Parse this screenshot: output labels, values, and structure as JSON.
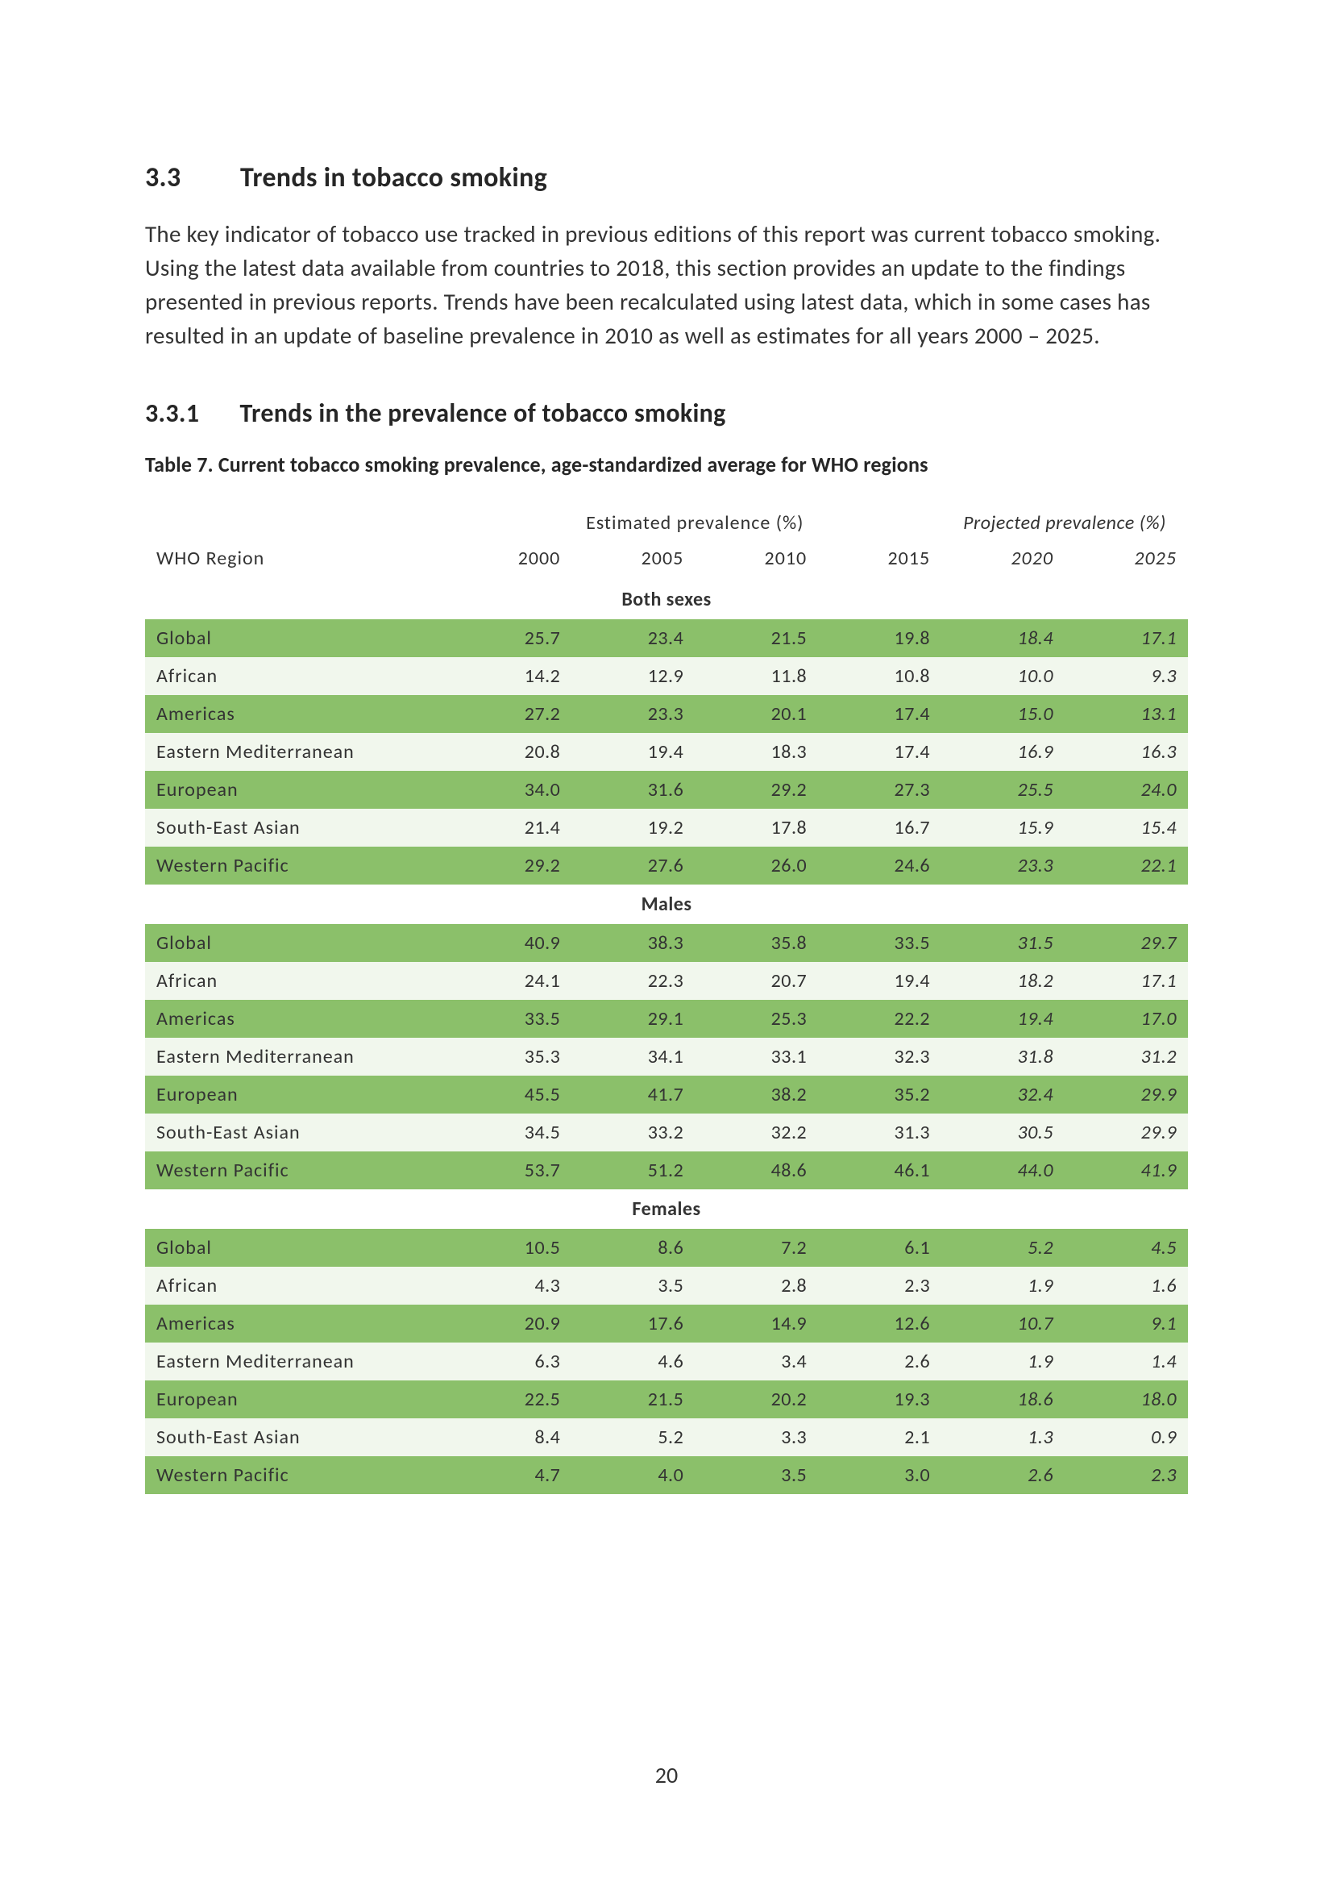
{
  "section": {
    "number": "3.3",
    "title": "Trends in tobacco smoking",
    "body": "The key indicator of tobacco use tracked in previous editions of this report was current tobacco smoking. Using the latest data available from countries to 2018, this section provides an update to the findings presented in previous reports. Trends have been recalculated using latest data, which in some cases has resulted in an update of baseline prevalence in 2010 as well as estimates for all years 2000 – 2025."
  },
  "subsection": {
    "number": "3.3.1",
    "title": "Trends in the prevalence of tobacco smoking"
  },
  "table": {
    "caption": "Table 7. Current tobacco smoking prevalence, age-standardized average for WHO regions",
    "region_header": "WHO Region",
    "group_headers": {
      "estimated": "Estimated prevalence (%)",
      "projected": "Projected prevalence (%)"
    },
    "years_estimated": [
      "2000",
      "2005",
      "2010",
      "2015"
    ],
    "years_projected": [
      "2020",
      "2025"
    ],
    "colors": {
      "row_dark": "#8bc06a",
      "row_light": "#f1f7ed",
      "text": "#333333",
      "background": "#ffffff"
    },
    "sections": [
      {
        "label": "Both sexes",
        "rows": [
          {
            "region": "Global",
            "est": [
              "25.7",
              "23.4",
              "21.5",
              "19.8"
            ],
            "proj": [
              "18.4",
              "17.1"
            ],
            "shade": "dark"
          },
          {
            "region": "African",
            "est": [
              "14.2",
              "12.9",
              "11.8",
              "10.8"
            ],
            "proj": [
              "10.0",
              "9.3"
            ],
            "shade": "light"
          },
          {
            "region": "Americas",
            "est": [
              "27.2",
              "23.3",
              "20.1",
              "17.4"
            ],
            "proj": [
              "15.0",
              "13.1"
            ],
            "shade": "dark"
          },
          {
            "region": "Eastern Mediterranean",
            "est": [
              "20.8",
              "19.4",
              "18.3",
              "17.4"
            ],
            "proj": [
              "16.9",
              "16.3"
            ],
            "shade": "light"
          },
          {
            "region": "European",
            "est": [
              "34.0",
              "31.6",
              "29.2",
              "27.3"
            ],
            "proj": [
              "25.5",
              "24.0"
            ],
            "shade": "dark"
          },
          {
            "region": "South-East Asian",
            "est": [
              "21.4",
              "19.2",
              "17.8",
              "16.7"
            ],
            "proj": [
              "15.9",
              "15.4"
            ],
            "shade": "light"
          },
          {
            "region": "Western Pacific",
            "est": [
              "29.2",
              "27.6",
              "26.0",
              "24.6"
            ],
            "proj": [
              "23.3",
              "22.1"
            ],
            "shade": "dark"
          }
        ]
      },
      {
        "label": "Males",
        "rows": [
          {
            "region": "Global",
            "est": [
              "40.9",
              "38.3",
              "35.8",
              "33.5"
            ],
            "proj": [
              "31.5",
              "29.7"
            ],
            "shade": "dark"
          },
          {
            "region": "African",
            "est": [
              "24.1",
              "22.3",
              "20.7",
              "19.4"
            ],
            "proj": [
              "18.2",
              "17.1"
            ],
            "shade": "light"
          },
          {
            "region": "Americas",
            "est": [
              "33.5",
              "29.1",
              "25.3",
              "22.2"
            ],
            "proj": [
              "19.4",
              "17.0"
            ],
            "shade": "dark"
          },
          {
            "region": "Eastern Mediterranean",
            "est": [
              "35.3",
              "34.1",
              "33.1",
              "32.3"
            ],
            "proj": [
              "31.8",
              "31.2"
            ],
            "shade": "light"
          },
          {
            "region": "European",
            "est": [
              "45.5",
              "41.7",
              "38.2",
              "35.2"
            ],
            "proj": [
              "32.4",
              "29.9"
            ],
            "shade": "dark"
          },
          {
            "region": "South-East Asian",
            "est": [
              "34.5",
              "33.2",
              "32.2",
              "31.3"
            ],
            "proj": [
              "30.5",
              "29.9"
            ],
            "shade": "light"
          },
          {
            "region": "Western Pacific",
            "est": [
              "53.7",
              "51.2",
              "48.6",
              "46.1"
            ],
            "proj": [
              "44.0",
              "41.9"
            ],
            "shade": "dark"
          }
        ]
      },
      {
        "label": "Females",
        "rows": [
          {
            "region": "Global",
            "est": [
              "10.5",
              "8.6",
              "7.2",
              "6.1"
            ],
            "proj": [
              "5.2",
              "4.5"
            ],
            "shade": "dark"
          },
          {
            "region": "African",
            "est": [
              "4.3",
              "3.5",
              "2.8",
              "2.3"
            ],
            "proj": [
              "1.9",
              "1.6"
            ],
            "shade": "light"
          },
          {
            "region": "Americas",
            "est": [
              "20.9",
              "17.6",
              "14.9",
              "12.6"
            ],
            "proj": [
              "10.7",
              "9.1"
            ],
            "shade": "dark"
          },
          {
            "region": "Eastern Mediterranean",
            "est": [
              "6.3",
              "4.6",
              "3.4",
              "2.6"
            ],
            "proj": [
              "1.9",
              "1.4"
            ],
            "shade": "light"
          },
          {
            "region": "European",
            "est": [
              "22.5",
              "21.5",
              "20.2",
              "19.3"
            ],
            "proj": [
              "18.6",
              "18.0"
            ],
            "shade": "dark"
          },
          {
            "region": "South-East Asian",
            "est": [
              "8.4",
              "5.2",
              "3.3",
              "2.1"
            ],
            "proj": [
              "1.3",
              "0.9"
            ],
            "shade": "light"
          },
          {
            "region": "Western Pacific",
            "est": [
              "4.7",
              "4.0",
              "3.5",
              "3.0"
            ],
            "proj": [
              "2.6",
              "2.3"
            ],
            "shade": "dark"
          }
        ]
      }
    ]
  },
  "page_number": "20"
}
